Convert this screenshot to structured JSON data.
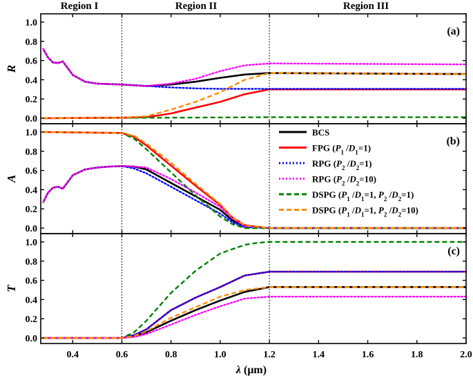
{
  "chart_data": {
    "type": "line",
    "regions": [
      "Region I",
      "Region II",
      "Region III"
    ],
    "region_bounds_um": [
      0.6,
      1.2
    ],
    "x_axis": {
      "label_var": "λ",
      "label_unit": " (μm)",
      "range": [
        0.27,
        2.0
      ],
      "ticks": [
        0.4,
        0.6,
        0.8,
        1.0,
        1.2,
        1.4,
        1.6,
        1.8,
        2.0
      ],
      "tick_labels": [
        "0.4",
        "0.6",
        "0.8",
        "1.0",
        "1.2",
        "1.4",
        "1.6",
        "1.8",
        "2.0"
      ]
    },
    "y_ticks": [
      0.0,
      0.2,
      0.4,
      0.6,
      0.8,
      1.0
    ],
    "y_tick_labels": [
      "0.0",
      "0.2",
      "0.4",
      "0.6",
      "0.8",
      "1.0"
    ],
    "series_styles": [
      {
        "name": "BCS",
        "color": "#000000",
        "dash": "solid"
      },
      {
        "name": "FPG",
        "color": "#ff0000",
        "dash": "solid"
      },
      {
        "name": "RPG2",
        "color": "#0000ff",
        "dash": "dot"
      },
      {
        "name": "RPG10",
        "color": "#ff00ff",
        "dash": "dot"
      },
      {
        "name": "DSPG1",
        "color": "#008000",
        "dash": "dash"
      },
      {
        "name": "DSPG10",
        "color": "#ff8c00",
        "dash": "dash"
      }
    ],
    "legend": [
      {
        "main": "BCS",
        "p1": "",
        "s1": "",
        "m1": "",
        "d1": "",
        "e1": "",
        "p2": "",
        "s2": "",
        "m2": "",
        "d2": "",
        "e2": ""
      },
      {
        "main": "FPG (",
        "p1": "P",
        "s1": "1",
        "m1": " /",
        "d1": "D",
        "e1": "1",
        "p2": "=1)",
        "s2": "",
        "m2": "",
        "d2": "",
        "e2": ""
      },
      {
        "main": "RPG (",
        "p1": "P",
        "s1": "2",
        "m1": " /",
        "d1": "D",
        "e1": "2",
        "p2": "=1)",
        "s2": "",
        "m2": "",
        "d2": "",
        "e2": ""
      },
      {
        "main": "RPG (",
        "p1": "P",
        "s1": "2",
        "m1": " /",
        "d1": "D",
        "e1": "2",
        "p2": "=10)",
        "s2": "",
        "m2": "",
        "d2": "",
        "e2": ""
      },
      {
        "main": "DSPG (",
        "p1": "P",
        "s1": "1",
        "m1": " /",
        "d1": "D",
        "e1": "1",
        "p2": "=1, ",
        "s2": "P",
        "m2": "2",
        "d2": " /",
        "e2": "D"
      },
      {
        "main": "DSPG (",
        "p1": "P",
        "s1": "1",
        "m1": " /",
        "d1": "D",
        "e1": "1",
        "p2": "=1, ",
        "s2": "P",
        "m2": "2",
        "d2": " /",
        "e2": "D"
      }
    ],
    "legend_tail": [
      "",
      "",
      "",
      "",
      "=1)",
      "=10)"
    ],
    "legend_tail_sub": [
      "",
      "",
      "",
      "",
      "2",
      "2"
    ],
    "panels": [
      {
        "label": "(a)",
        "ylabel": "R",
        "ylim": [
          0,
          1.0
        ],
        "series": [
          {
            "name": "BCS",
            "x": [
              0.28,
              0.3,
              0.32,
              0.34,
              0.36,
              0.38,
              0.4,
              0.45,
              0.5,
              0.6,
              0.7,
              0.8,
              0.9,
              1.0,
              1.1,
              1.2,
              2.0
            ],
            "y": [
              0.72,
              0.63,
              0.58,
              0.575,
              0.59,
              0.52,
              0.45,
              0.38,
              0.36,
              0.35,
              0.335,
              0.35,
              0.38,
              0.42,
              0.455,
              0.47,
              0.46
            ]
          },
          {
            "name": "FPG",
            "x": [
              0.28,
              0.6,
              0.7,
              0.8,
              0.9,
              1.0,
              1.1,
              1.2,
              2.0
            ],
            "y": [
              0.0,
              0.005,
              0.01,
              0.05,
              0.11,
              0.17,
              0.25,
              0.3,
              0.3
            ]
          },
          {
            "name": "RPG2",
            "x": [
              0.28,
              0.3,
              0.32,
              0.34,
              0.36,
              0.38,
              0.4,
              0.45,
              0.5,
              0.6,
              0.7,
              0.8,
              0.9,
              1.0,
              1.1,
              1.2,
              2.0
            ],
            "y": [
              0.72,
              0.63,
              0.58,
              0.575,
              0.59,
              0.52,
              0.45,
              0.38,
              0.36,
              0.35,
              0.335,
              0.32,
              0.31,
              0.305,
              0.305,
              0.305,
              0.305
            ]
          },
          {
            "name": "RPG10",
            "x": [
              0.28,
              0.3,
              0.32,
              0.34,
              0.36,
              0.38,
              0.4,
              0.45,
              0.5,
              0.6,
              0.7,
              0.8,
              0.9,
              1.0,
              1.1,
              1.2,
              2.0
            ],
            "y": [
              0.72,
              0.63,
              0.58,
              0.575,
              0.59,
              0.52,
              0.45,
              0.38,
              0.36,
              0.35,
              0.335,
              0.36,
              0.41,
              0.49,
              0.55,
              0.57,
              0.56
            ]
          },
          {
            "name": "DSPG1",
            "x": [
              0.28,
              1.2,
              2.0
            ],
            "y": [
              0.0,
              0.01,
              0.01
            ]
          },
          {
            "name": "DSPG10",
            "x": [
              0.28,
              0.6,
              0.7,
              0.8,
              0.9,
              1.0,
              1.1,
              1.2,
              2.0
            ],
            "y": [
              0.0,
              0.005,
              0.02,
              0.09,
              0.17,
              0.27,
              0.4,
              0.47,
              0.46
            ]
          }
        ]
      },
      {
        "label": "(b)",
        "ylabel": "A",
        "ylim": [
          0,
          1.0
        ],
        "series": [
          {
            "name": "BCS",
            "x": [
              0.28,
              0.3,
              0.32,
              0.34,
              0.36,
              0.38,
              0.4,
              0.45,
              0.5,
              0.55,
              0.6,
              0.65,
              0.7,
              0.8,
              0.9,
              1.0,
              1.05,
              1.1,
              1.2,
              2.0
            ],
            "y": [
              0.27,
              0.37,
              0.42,
              0.43,
              0.41,
              0.48,
              0.55,
              0.61,
              0.63,
              0.64,
              0.645,
              0.64,
              0.61,
              0.47,
              0.33,
              0.19,
              0.08,
              0.02,
              0.0,
              0.0
            ]
          },
          {
            "name": "FPG",
            "x": [
              0.28,
              0.6,
              0.65,
              0.7,
              0.8,
              0.9,
              1.0,
              1.05,
              1.1,
              1.2,
              2.0
            ],
            "y": [
              1.0,
              0.99,
              0.95,
              0.86,
              0.65,
              0.44,
              0.24,
              0.11,
              0.03,
              0.0,
              0.0
            ]
          },
          {
            "name": "RPG2",
            "x": [
              0.28,
              0.3,
              0.32,
              0.34,
              0.36,
              0.38,
              0.4,
              0.45,
              0.5,
              0.55,
              0.6,
              0.65,
              0.7,
              0.8,
              0.9,
              1.0,
              1.05,
              1.1,
              1.2,
              2.0
            ],
            "y": [
              0.27,
              0.37,
              0.42,
              0.43,
              0.41,
              0.48,
              0.55,
              0.61,
              0.63,
              0.64,
              0.645,
              0.62,
              0.57,
              0.43,
              0.29,
              0.15,
              0.06,
              0.01,
              0.0,
              0.0
            ]
          },
          {
            "name": "RPG10",
            "x": [
              0.28,
              0.3,
              0.32,
              0.34,
              0.36,
              0.38,
              0.4,
              0.45,
              0.5,
              0.55,
              0.6,
              0.65,
              0.7,
              0.8,
              0.9,
              1.0,
              1.05,
              1.1,
              1.2,
              2.0
            ],
            "y": [
              0.27,
              0.37,
              0.42,
              0.43,
              0.41,
              0.48,
              0.55,
              0.61,
              0.63,
              0.64,
              0.645,
              0.64,
              0.63,
              0.51,
              0.37,
              0.22,
              0.1,
              0.02,
              0.0,
              0.0
            ]
          },
          {
            "name": "DSPG1",
            "x": [
              0.28,
              0.6,
              0.65,
              0.7,
              0.8,
              0.9,
              1.0,
              1.05,
              1.1,
              1.2,
              2.0
            ],
            "y": [
              1.0,
              0.99,
              0.93,
              0.82,
              0.58,
              0.34,
              0.12,
              0.04,
              0.0,
              0.0,
              0.0
            ]
          },
          {
            "name": "DSPG10",
            "x": [
              0.28,
              0.6,
              0.65,
              0.7,
              0.8,
              0.9,
              1.0,
              1.05,
              1.1,
              1.2,
              2.0
            ],
            "y": [
              1.0,
              0.99,
              0.96,
              0.88,
              0.68,
              0.46,
              0.25,
              0.11,
              0.03,
              0.0,
              0.0
            ]
          }
        ]
      },
      {
        "label": "(c)",
        "ylabel": "T",
        "ylim": [
          0,
          1.0
        ],
        "series": [
          {
            "name": "BCS",
            "x": [
              0.28,
              0.6,
              0.65,
              0.7,
              0.8,
              0.9,
              1.0,
              1.1,
              1.2,
              2.0
            ],
            "y": [
              0.0,
              0.0,
              0.02,
              0.06,
              0.18,
              0.29,
              0.39,
              0.48,
              0.53,
              0.53
            ]
          },
          {
            "name": "FPG",
            "x": [
              0.28,
              0.6,
              0.65,
              0.7,
              0.8,
              0.9,
              1.0,
              1.1,
              1.2,
              2.0
            ],
            "y": [
              0.0,
              0.0,
              0.03,
              0.09,
              0.29,
              0.42,
              0.53,
              0.65,
              0.69,
              0.69
            ]
          },
          {
            "name": "RPG2",
            "x": [
              0.28,
              0.6,
              0.65,
              0.7,
              0.8,
              0.9,
              1.0,
              1.1,
              1.2,
              2.0
            ],
            "y": [
              0.0,
              0.0,
              0.03,
              0.09,
              0.29,
              0.42,
              0.53,
              0.65,
              0.69,
              0.69
            ]
          },
          {
            "name": "RPG10",
            "x": [
              0.28,
              0.6,
              0.65,
              0.7,
              0.8,
              0.9,
              1.0,
              1.1,
              1.2,
              2.0
            ],
            "y": [
              0.0,
              0.0,
              0.01,
              0.04,
              0.14,
              0.24,
              0.33,
              0.41,
              0.43,
              0.43
            ]
          },
          {
            "name": "DSPG1",
            "x": [
              0.28,
              0.6,
              0.65,
              0.7,
              0.8,
              0.9,
              1.0,
              1.1,
              1.15,
              1.2,
              2.0
            ],
            "y": [
              0.0,
              0.0,
              0.06,
              0.18,
              0.47,
              0.7,
              0.88,
              0.97,
              0.99,
              1.0,
              1.0
            ]
          },
          {
            "name": "DSPG10",
            "x": [
              0.28,
              0.6,
              0.65,
              0.7,
              0.8,
              0.9,
              1.0,
              1.1,
              1.2,
              2.0
            ],
            "y": [
              0.0,
              0.0,
              0.02,
              0.07,
              0.21,
              0.32,
              0.43,
              0.5,
              0.53,
              0.53
            ]
          }
        ]
      }
    ]
  }
}
